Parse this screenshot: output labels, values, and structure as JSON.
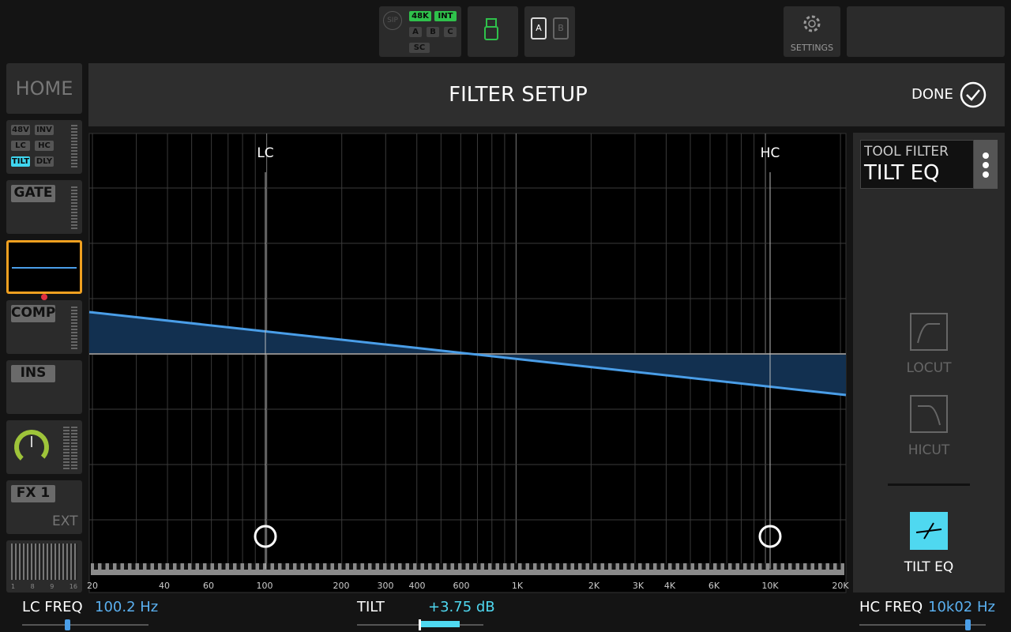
{
  "top_bar": {
    "sip": "SIP",
    "rate": "48K",
    "clock": "INT",
    "inputs": [
      "A",
      "B",
      "C"
    ],
    "sc": "SC",
    "cards": [
      "A",
      "B"
    ],
    "settings": "SETTINGS"
  },
  "header": {
    "home": "HOME",
    "title": "FILTER SETUP",
    "done": "DONE"
  },
  "sidebar": {
    "channel_flags": [
      "48V",
      "INV",
      "LC",
      "HC",
      "TILT",
      "DLY"
    ],
    "gate": "GATE",
    "comp": "COMP",
    "ins": "INS",
    "fx": "FX 1",
    "fx_mode": "EXT",
    "meter_labels": [
      "1",
      "8",
      "9",
      "16"
    ]
  },
  "graph": {
    "lc_label": "LC",
    "hc_label": "HC",
    "x_labels": [
      "20",
      "40",
      "60",
      "100",
      "200",
      "300",
      "400",
      "600",
      "1K",
      "2K",
      "3K",
      "4K",
      "6K",
      "10K",
      "20K"
    ]
  },
  "tool_panel": {
    "heading": "TOOL FILTER",
    "tool": "TILT EQ",
    "buttons": [
      "LOCUT",
      "HICUT",
      "TILT EQ"
    ]
  },
  "params": [
    {
      "label": "LC FREQ",
      "value": "100.2 Hz"
    },
    {
      "label": "TILT",
      "value": "+3.75 dB"
    },
    {
      "label": "HC FREQ",
      "value": "10k02 Hz"
    }
  ]
}
